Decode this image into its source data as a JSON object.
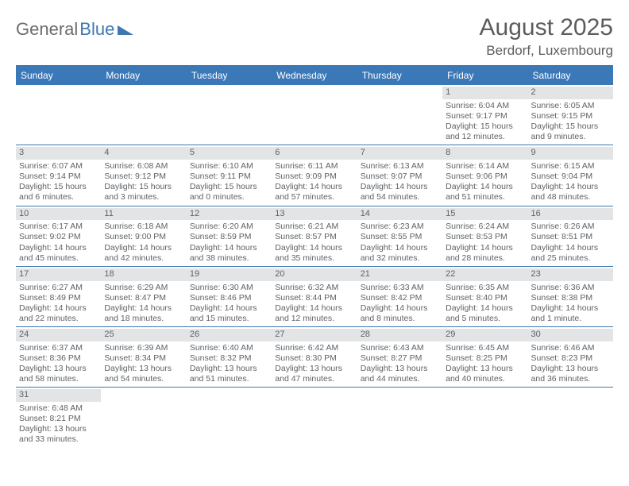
{
  "logo": {
    "part1": "General",
    "part2": "Blue"
  },
  "title": {
    "month": "August 2025",
    "location": "Berdorf, Luxembourg"
  },
  "colors": {
    "header_bg": "#3b78b8",
    "rule": "#3d78b0",
    "daynum_bg": "#e2e4e6",
    "text": "#5f6265",
    "page_bg": "#ffffff"
  },
  "days_of_week": [
    "Sunday",
    "Monday",
    "Tuesday",
    "Wednesday",
    "Thursday",
    "Friday",
    "Saturday"
  ],
  "weeks": [
    [
      {
        "empty": true
      },
      {
        "empty": true
      },
      {
        "empty": true
      },
      {
        "empty": true
      },
      {
        "empty": true
      },
      {
        "day": "1",
        "sunrise": "Sunrise: 6:04 AM",
        "sunset": "Sunset: 9:17 PM",
        "daylight": "Daylight: 15 hours and 12 minutes."
      },
      {
        "day": "2",
        "sunrise": "Sunrise: 6:05 AM",
        "sunset": "Sunset: 9:15 PM",
        "daylight": "Daylight: 15 hours and 9 minutes."
      }
    ],
    [
      {
        "day": "3",
        "sunrise": "Sunrise: 6:07 AM",
        "sunset": "Sunset: 9:14 PM",
        "daylight": "Daylight: 15 hours and 6 minutes."
      },
      {
        "day": "4",
        "sunrise": "Sunrise: 6:08 AM",
        "sunset": "Sunset: 9:12 PM",
        "daylight": "Daylight: 15 hours and 3 minutes."
      },
      {
        "day": "5",
        "sunrise": "Sunrise: 6:10 AM",
        "sunset": "Sunset: 9:11 PM",
        "daylight": "Daylight: 15 hours and 0 minutes."
      },
      {
        "day": "6",
        "sunrise": "Sunrise: 6:11 AM",
        "sunset": "Sunset: 9:09 PM",
        "daylight": "Daylight: 14 hours and 57 minutes."
      },
      {
        "day": "7",
        "sunrise": "Sunrise: 6:13 AM",
        "sunset": "Sunset: 9:07 PM",
        "daylight": "Daylight: 14 hours and 54 minutes."
      },
      {
        "day": "8",
        "sunrise": "Sunrise: 6:14 AM",
        "sunset": "Sunset: 9:06 PM",
        "daylight": "Daylight: 14 hours and 51 minutes."
      },
      {
        "day": "9",
        "sunrise": "Sunrise: 6:15 AM",
        "sunset": "Sunset: 9:04 PM",
        "daylight": "Daylight: 14 hours and 48 minutes."
      }
    ],
    [
      {
        "day": "10",
        "sunrise": "Sunrise: 6:17 AM",
        "sunset": "Sunset: 9:02 PM",
        "daylight": "Daylight: 14 hours and 45 minutes."
      },
      {
        "day": "11",
        "sunrise": "Sunrise: 6:18 AM",
        "sunset": "Sunset: 9:00 PM",
        "daylight": "Daylight: 14 hours and 42 minutes."
      },
      {
        "day": "12",
        "sunrise": "Sunrise: 6:20 AM",
        "sunset": "Sunset: 8:59 PM",
        "daylight": "Daylight: 14 hours and 38 minutes."
      },
      {
        "day": "13",
        "sunrise": "Sunrise: 6:21 AM",
        "sunset": "Sunset: 8:57 PM",
        "daylight": "Daylight: 14 hours and 35 minutes."
      },
      {
        "day": "14",
        "sunrise": "Sunrise: 6:23 AM",
        "sunset": "Sunset: 8:55 PM",
        "daylight": "Daylight: 14 hours and 32 minutes."
      },
      {
        "day": "15",
        "sunrise": "Sunrise: 6:24 AM",
        "sunset": "Sunset: 8:53 PM",
        "daylight": "Daylight: 14 hours and 28 minutes."
      },
      {
        "day": "16",
        "sunrise": "Sunrise: 6:26 AM",
        "sunset": "Sunset: 8:51 PM",
        "daylight": "Daylight: 14 hours and 25 minutes."
      }
    ],
    [
      {
        "day": "17",
        "sunrise": "Sunrise: 6:27 AM",
        "sunset": "Sunset: 8:49 PM",
        "daylight": "Daylight: 14 hours and 22 minutes."
      },
      {
        "day": "18",
        "sunrise": "Sunrise: 6:29 AM",
        "sunset": "Sunset: 8:47 PM",
        "daylight": "Daylight: 14 hours and 18 minutes."
      },
      {
        "day": "19",
        "sunrise": "Sunrise: 6:30 AM",
        "sunset": "Sunset: 8:46 PM",
        "daylight": "Daylight: 14 hours and 15 minutes."
      },
      {
        "day": "20",
        "sunrise": "Sunrise: 6:32 AM",
        "sunset": "Sunset: 8:44 PM",
        "daylight": "Daylight: 14 hours and 12 minutes."
      },
      {
        "day": "21",
        "sunrise": "Sunrise: 6:33 AM",
        "sunset": "Sunset: 8:42 PM",
        "daylight": "Daylight: 14 hours and 8 minutes."
      },
      {
        "day": "22",
        "sunrise": "Sunrise: 6:35 AM",
        "sunset": "Sunset: 8:40 PM",
        "daylight": "Daylight: 14 hours and 5 minutes."
      },
      {
        "day": "23",
        "sunrise": "Sunrise: 6:36 AM",
        "sunset": "Sunset: 8:38 PM",
        "daylight": "Daylight: 14 hours and 1 minute."
      }
    ],
    [
      {
        "day": "24",
        "sunrise": "Sunrise: 6:37 AM",
        "sunset": "Sunset: 8:36 PM",
        "daylight": "Daylight: 13 hours and 58 minutes."
      },
      {
        "day": "25",
        "sunrise": "Sunrise: 6:39 AM",
        "sunset": "Sunset: 8:34 PM",
        "daylight": "Daylight: 13 hours and 54 minutes."
      },
      {
        "day": "26",
        "sunrise": "Sunrise: 6:40 AM",
        "sunset": "Sunset: 8:32 PM",
        "daylight": "Daylight: 13 hours and 51 minutes."
      },
      {
        "day": "27",
        "sunrise": "Sunrise: 6:42 AM",
        "sunset": "Sunset: 8:30 PM",
        "daylight": "Daylight: 13 hours and 47 minutes."
      },
      {
        "day": "28",
        "sunrise": "Sunrise: 6:43 AM",
        "sunset": "Sunset: 8:27 PM",
        "daylight": "Daylight: 13 hours and 44 minutes."
      },
      {
        "day": "29",
        "sunrise": "Sunrise: 6:45 AM",
        "sunset": "Sunset: 8:25 PM",
        "daylight": "Daylight: 13 hours and 40 minutes."
      },
      {
        "day": "30",
        "sunrise": "Sunrise: 6:46 AM",
        "sunset": "Sunset: 8:23 PM",
        "daylight": "Daylight: 13 hours and 36 minutes."
      }
    ],
    [
      {
        "day": "31",
        "sunrise": "Sunrise: 6:48 AM",
        "sunset": "Sunset: 8:21 PM",
        "daylight": "Daylight: 13 hours and 33 minutes."
      },
      {
        "empty": true
      },
      {
        "empty": true
      },
      {
        "empty": true
      },
      {
        "empty": true
      },
      {
        "empty": true
      },
      {
        "empty": true
      }
    ]
  ]
}
